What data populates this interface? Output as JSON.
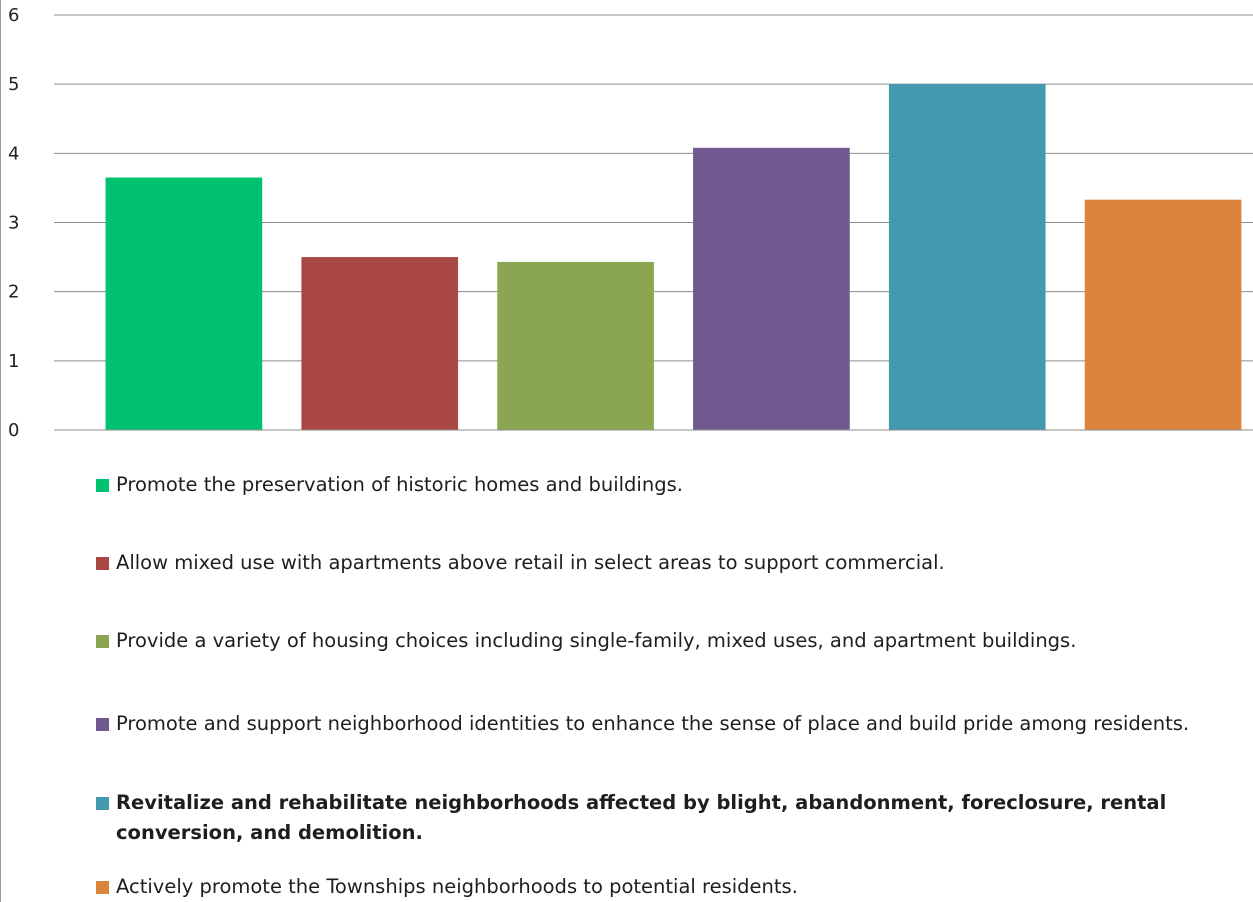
{
  "chart_data": {
    "type": "bar",
    "title": "",
    "xlabel": "",
    "ylabel": "",
    "ylim": [
      0,
      6
    ],
    "yticks": [
      0,
      1,
      2,
      3,
      4,
      5,
      6
    ],
    "grid": true,
    "legend_position": "bottom",
    "categories": [
      "Promote the preservation of historic homes and buildings.",
      "Allow mixed use with apartments above retail in select areas to support commercial.",
      "Provide a variety of housing choices including single-family, mixed uses, and apartment buildings.",
      "Promote and support neighborhood identities to enhance the sense of place and build pride among residents.",
      "Revitalize and rehabilitate neighborhoods affected by blight, abandonment, foreclosure, rental conversion, and demolition.",
      "Actively promote the Townships neighborhoods to potential residents."
    ],
    "values": [
      3.65,
      2.5,
      2.43,
      4.08,
      5.0,
      3.33
    ],
    "colors": [
      "#00c16e",
      "#a94745",
      "#8ba651",
      "#71588f",
      "#4299b0",
      "#db843d"
    ],
    "emphasized": [
      false,
      false,
      false,
      false,
      true,
      false
    ]
  }
}
